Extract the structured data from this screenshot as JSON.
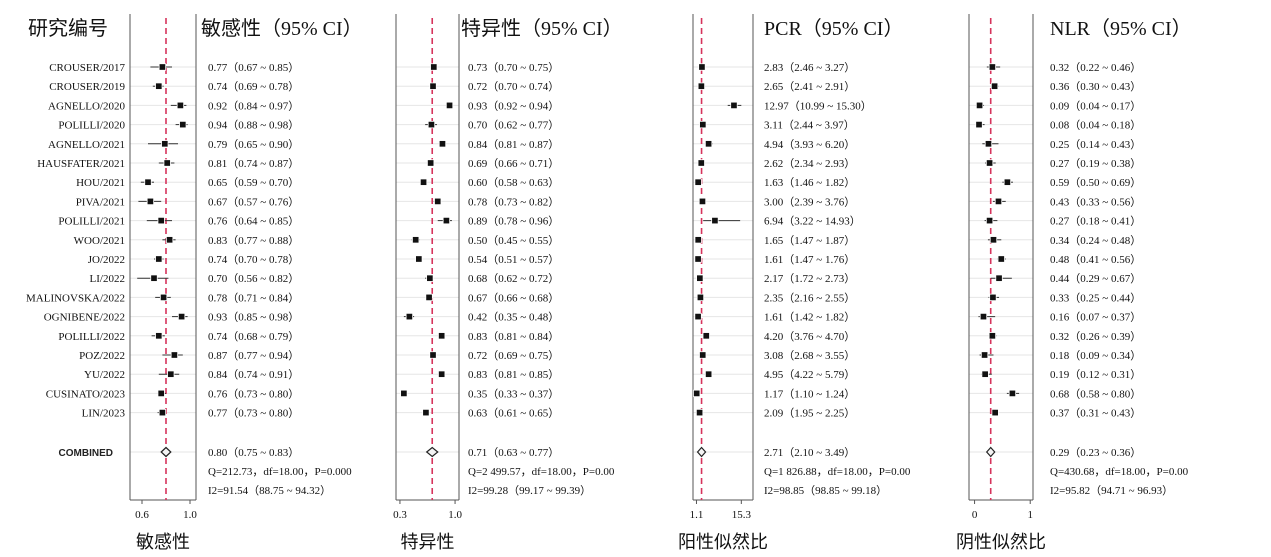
{
  "header": {
    "study_col": "研究编号"
  },
  "studies": [
    "CROUSER/2017",
    "CROUSER/2019",
    "AGNELLO/2020",
    "POLILLI/2020",
    "AGNELLO/2021",
    "HAUSFATER/2021",
    "HOU/2021",
    "PIVA/2021",
    "POLILLI/2021",
    "WOO/2021",
    "JO/2022",
    "LI/2022",
    "MALINOVSKA/2022",
    "OGNIBENE/2022",
    "POLILLI/2022",
    "POZ/2022",
    "YU/2022",
    "CUSINATO/2023",
    "LIN/2023"
  ],
  "combined_label": "COMBINED",
  "chart_data": [
    {
      "type": "forest",
      "title": "敏感性（95% CI）",
      "xlabel": "敏感性",
      "xlim": [
        0.5,
        1.05
      ],
      "ticks": [
        0.6,
        1.0
      ],
      "tick_labels": [
        "0.6",
        "1.0"
      ],
      "reference_line": 0.8,
      "values": [
        0.77,
        0.74,
        0.92,
        0.94,
        0.79,
        0.81,
        0.65,
        0.67,
        0.76,
        0.83,
        0.74,
        0.7,
        0.78,
        0.93,
        0.74,
        0.87,
        0.84,
        0.76,
        0.77
      ],
      "lower": [
        0.67,
        0.69,
        0.84,
        0.88,
        0.65,
        0.74,
        0.59,
        0.57,
        0.64,
        0.77,
        0.7,
        0.56,
        0.71,
        0.85,
        0.68,
        0.77,
        0.74,
        0.73,
        0.73
      ],
      "upper": [
        0.85,
        0.78,
        0.97,
        0.98,
        0.9,
        0.87,
        0.7,
        0.76,
        0.85,
        0.88,
        0.78,
        0.82,
        0.84,
        0.98,
        0.79,
        0.94,
        0.91,
        0.8,
        0.8
      ],
      "labels": [
        "0.77（0.67 ~ 0.85）",
        "0.74（0.69 ~ 0.78）",
        "0.92（0.84 ~ 0.97）",
        "0.94（0.88 ~ 0.98）",
        "0.79（0.65 ~ 0.90）",
        "0.81（0.74 ~ 0.87）",
        "0.65（0.59 ~ 0.70）",
        "0.67（0.57 ~ 0.76）",
        "0.76（0.64 ~ 0.85）",
        "0.83（0.77 ~ 0.88）",
        "0.74（0.70 ~ 0.78）",
        "0.70（0.56 ~ 0.82）",
        "0.78（0.71 ~ 0.84）",
        "0.93（0.85 ~ 0.98）",
        "0.74（0.68 ~ 0.79）",
        "0.87（0.77 ~ 0.94）",
        "0.84（0.74 ~ 0.91）",
        "0.76（0.73 ~ 0.80）",
        "0.77（0.73 ~ 0.80）"
      ],
      "combined": {
        "value": 0.8,
        "lower": 0.75,
        "upper": 0.83,
        "label": "0.80（0.75 ~ 0.83）"
      },
      "q_line": "Q=212.73，df=18.00，P=0.000",
      "i2_line": "I2=91.54（88.75 ~ 94.32）"
    },
    {
      "type": "forest",
      "title": "特异性（95% CI）",
      "xlabel": "特异性",
      "xlim": [
        0.25,
        1.05
      ],
      "ticks": [
        0.3,
        1.0
      ],
      "tick_labels": [
        "0.3",
        "1.0"
      ],
      "reference_line": 0.71,
      "values": [
        0.73,
        0.72,
        0.93,
        0.7,
        0.84,
        0.69,
        0.6,
        0.78,
        0.89,
        0.5,
        0.54,
        0.68,
        0.67,
        0.42,
        0.83,
        0.72,
        0.83,
        0.35,
        0.63
      ],
      "lower": [
        0.7,
        0.7,
        0.92,
        0.62,
        0.81,
        0.66,
        0.58,
        0.73,
        0.78,
        0.45,
        0.51,
        0.62,
        0.66,
        0.35,
        0.81,
        0.69,
        0.81,
        0.33,
        0.61
      ],
      "upper": [
        0.75,
        0.74,
        0.94,
        0.77,
        0.87,
        0.71,
        0.63,
        0.82,
        0.96,
        0.55,
        0.57,
        0.72,
        0.68,
        0.48,
        0.84,
        0.75,
        0.85,
        0.37,
        0.65
      ],
      "labels": [
        "0.73（0.70 ~ 0.75）",
        "0.72（0.70 ~ 0.74）",
        "0.93（0.92 ~ 0.94）",
        "0.70（0.62 ~ 0.77）",
        "0.84（0.81 ~ 0.87）",
        "0.69（0.66 ~ 0.71）",
        "0.60（0.58 ~ 0.63）",
        "0.78（0.73 ~ 0.82）",
        "0.89（0.78 ~ 0.96）",
        "0.50（0.45 ~ 0.55）",
        "0.54（0.51 ~ 0.57）",
        "0.68（0.62 ~ 0.72）",
        "0.67（0.66 ~ 0.68）",
        "0.42（0.35 ~ 0.48）",
        "0.83（0.81 ~ 0.84）",
        "0.72（0.69 ~ 0.75）",
        "0.83（0.81 ~ 0.85）",
        "0.35（0.33 ~ 0.37）",
        "0.63（0.61 ~ 0.65）"
      ],
      "combined": {
        "value": 0.71,
        "lower": 0.63,
        "upper": 0.77,
        "label": "0.71（0.63 ~ 0.77）"
      },
      "q_line": "Q=2 499.57，df=18.00，P=0.00",
      "i2_line": "I2=99.28（99.17 ~ 99.39）"
    },
    {
      "type": "forest",
      "title": "PCR（95% CI）",
      "xlabel": "阳性似然比",
      "xlim": [
        0,
        19
      ],
      "ticks": [
        1.1,
        15.3
      ],
      "tick_labels": [
        "1.1",
        "15.3"
      ],
      "reference_line": 2.71,
      "values": [
        2.83,
        2.65,
        12.97,
        3.11,
        4.94,
        2.62,
        1.63,
        3.0,
        6.94,
        1.65,
        1.61,
        2.17,
        2.35,
        1.61,
        4.2,
        3.08,
        4.95,
        1.17,
        2.09
      ],
      "lower": [
        2.46,
        2.41,
        10.99,
        2.44,
        3.93,
        2.34,
        1.46,
        2.39,
        3.22,
        1.47,
        1.47,
        1.72,
        2.16,
        1.42,
        3.76,
        2.68,
        4.22,
        1.1,
        1.95
      ],
      "upper": [
        3.27,
        2.91,
        15.3,
        3.97,
        6.2,
        2.93,
        1.82,
        3.76,
        14.93,
        1.87,
        1.76,
        2.73,
        2.55,
        1.82,
        4.7,
        3.55,
        5.79,
        1.24,
        2.25
      ],
      "labels": [
        "2.83（2.46 ~ 3.27）",
        "2.65（2.41 ~ 2.91）",
        "12.97（10.99 ~ 15.30）",
        "3.11（2.44 ~ 3.97）",
        "4.94（3.93 ~ 6.20）",
        "2.62（2.34 ~ 2.93）",
        "1.63（1.46 ~ 1.82）",
        "3.00（2.39 ~ 3.76）",
        "6.94（3.22 ~ 14.93）",
        "1.65（1.47 ~ 1.87）",
        "1.61（1.47 ~ 1.76）",
        "2.17（1.72 ~ 2.73）",
        "2.35（2.16 ~ 2.55）",
        "1.61（1.42 ~ 1.82）",
        "4.20（3.76 ~ 4.70）",
        "3.08（2.68 ~ 3.55）",
        "4.95（4.22 ~ 5.79）",
        "1.17（1.10 ~ 1.24）",
        "2.09（1.95 ~ 2.25）"
      ],
      "combined": {
        "value": 2.71,
        "lower": 2.1,
        "upper": 3.49,
        "label": "2.71（2.10 ~ 3.49）"
      },
      "q_line": "Q=1 826.88，df=18.00，P=0.00",
      "i2_line": "I2=98.85（98.85 ~ 99.18）"
    },
    {
      "type": "forest",
      "title": "NLR（95% CI）",
      "xlabel": "阴性似然比",
      "xlim": [
        -0.1,
        1.05
      ],
      "ticks": [
        0,
        1
      ],
      "tick_labels": [
        "0",
        "1"
      ],
      "reference_line": 0.29,
      "values": [
        0.32,
        0.36,
        0.09,
        0.08,
        0.25,
        0.27,
        0.59,
        0.43,
        0.27,
        0.34,
        0.48,
        0.44,
        0.33,
        0.16,
        0.32,
        0.18,
        0.19,
        0.68,
        0.37
      ],
      "lower": [
        0.22,
        0.3,
        0.04,
        0.04,
        0.14,
        0.19,
        0.5,
        0.33,
        0.18,
        0.24,
        0.41,
        0.29,
        0.25,
        0.07,
        0.26,
        0.09,
        0.12,
        0.58,
        0.31
      ],
      "upper": [
        0.46,
        0.43,
        0.17,
        0.18,
        0.43,
        0.38,
        0.69,
        0.56,
        0.41,
        0.48,
        0.56,
        0.67,
        0.44,
        0.37,
        0.39,
        0.34,
        0.31,
        0.8,
        0.43
      ],
      "labels": [
        "0.32（0.22 ~ 0.46）",
        "0.36（0.30 ~ 0.43）",
        "0.09（0.04 ~ 0.17）",
        "0.08（0.04 ~ 0.18）",
        "0.25（0.14 ~ 0.43）",
        "0.27（0.19 ~ 0.38）",
        "0.59（0.50 ~ 0.69）",
        "0.43（0.33 ~ 0.56）",
        "0.27（0.18 ~ 0.41）",
        "0.34（0.24 ~ 0.48）",
        "0.48（0.41 ~ 0.56）",
        "0.44（0.29 ~ 0.67）",
        "0.33（0.25 ~ 0.44）",
        "0.16（0.07 ~ 0.37）",
        "0.32（0.26 ~ 0.39）",
        "0.18（0.09 ~ 0.34）",
        "0.19（0.12 ~ 0.31）",
        "0.68（0.58 ~ 0.80）",
        "0.37（0.31 ~ 0.43）"
      ],
      "combined": {
        "value": 0.29,
        "lower": 0.23,
        "upper": 0.36,
        "label": "0.29（0.23 ~ 0.36）"
      },
      "q_line": "Q=430.68，df=18.00，P=0.00",
      "i2_line": "I2=95.82（94.71 ~ 96.93）"
    }
  ],
  "colors": {
    "reference_line": "#d6335c",
    "marker": "#111111",
    "grid": "#e6e6e6",
    "axis": "#555555"
  }
}
